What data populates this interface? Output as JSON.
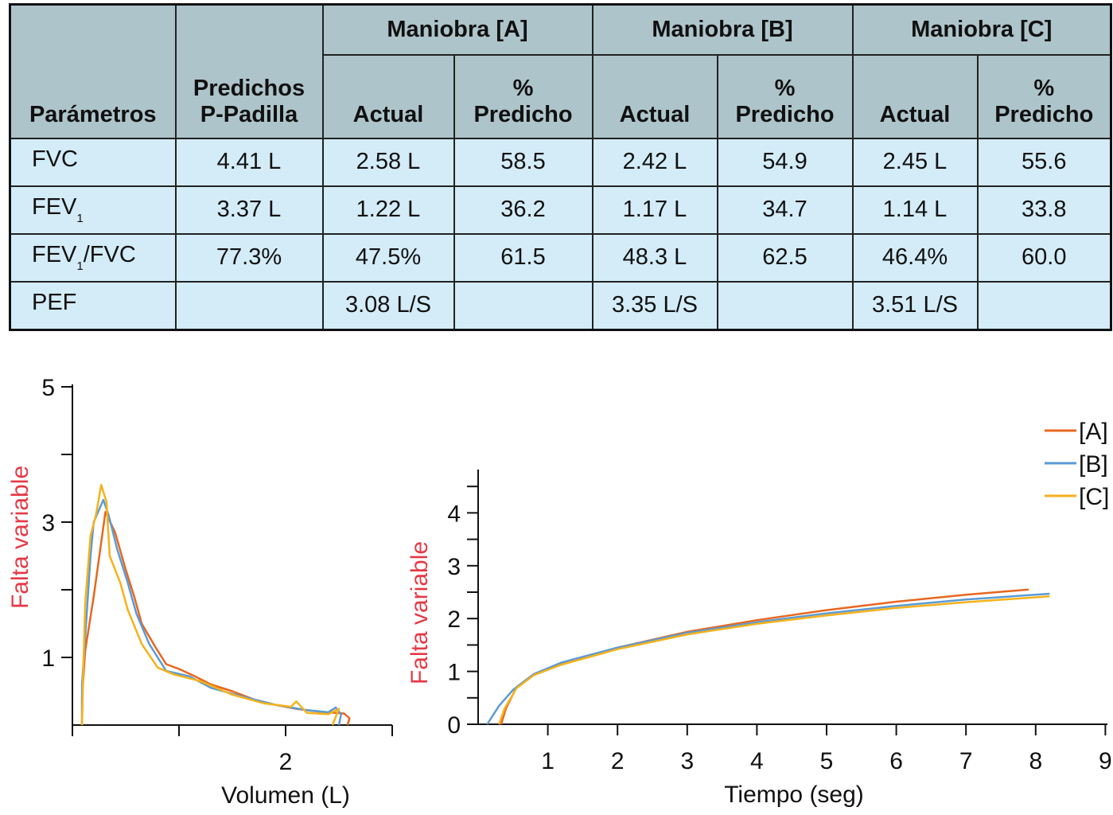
{
  "table": {
    "headers": {
      "parametros": "Parámetros",
      "predichos_line1": "Predichos",
      "predichos_line2": "P-Padilla",
      "maniobras": [
        "Maniobra [A]",
        "Maniobra [B]",
        "Maniobra [C]"
      ],
      "actual": "Actual",
      "pct_line1": "%",
      "pct_line2": "Predicho"
    },
    "rows": [
      {
        "param": "FVC",
        "sub": "",
        "param_suffix": "",
        "pred": "4.41 L",
        "a_act": "2.58 L",
        "a_pct": "58.5",
        "b_act": "2.42 L",
        "b_pct": "54.9",
        "c_act": "2.45 L",
        "c_pct": "55.6"
      },
      {
        "param": "FEV",
        "sub": "1",
        "param_suffix": "",
        "pred": "3.37 L",
        "a_act": "1.22 L",
        "a_pct": "36.2",
        "b_act": "1.17 L",
        "b_pct": "34.7",
        "c_act": "1.14 L",
        "c_pct": "33.8"
      },
      {
        "param": "FEV",
        "sub": "1",
        "param_suffix": "/FVC",
        "pred": "77.3%",
        "a_act": "47.5%",
        "a_pct": "61.5",
        "b_act": "48.3 L",
        "b_pct": "62.5",
        "c_act": "46.4%",
        "c_pct": "60.0"
      },
      {
        "param": "PEF",
        "sub": "",
        "param_suffix": "",
        "pred": "",
        "a_act": "3.08 L/S",
        "a_pct": "",
        "b_act": "3.35 L/S",
        "b_pct": "",
        "c_act": "3.51 L/S",
        "c_pct": ""
      }
    ]
  },
  "colors": {
    "A": "#e8671f",
    "B": "#5b9bd5",
    "C": "#f5b21b",
    "ylabel": "#e53946"
  },
  "chart_data": [
    {
      "type": "line",
      "title": "",
      "xlabel": "Volumen (L)",
      "ylabel": "Falta variable",
      "xlim": [
        0,
        3
      ],
      "ylim": [
        0,
        5
      ],
      "xticks": [
        0,
        1,
        2,
        3
      ],
      "xtick_labels": [
        "",
        "",
        "2",
        ""
      ],
      "yticks": [
        1,
        2,
        3,
        4,
        5
      ],
      "ytick_labels": [
        "1",
        "",
        "3",
        "",
        "5"
      ],
      "series": [
        {
          "name": "[A]",
          "points": [
            [
              0.09,
              0
            ],
            [
              0.09,
              0.4
            ],
            [
              0.12,
              1.1
            ],
            [
              0.2,
              1.9
            ],
            [
              0.31,
              3.15
            ],
            [
              0.4,
              2.85
            ],
            [
              0.5,
              2.3
            ],
            [
              0.58,
              1.9
            ],
            [
              0.65,
              1.5
            ],
            [
              0.78,
              1.15
            ],
            [
              0.88,
              0.9
            ],
            [
              1.0,
              0.83
            ],
            [
              1.15,
              0.72
            ],
            [
              1.3,
              0.6
            ],
            [
              1.5,
              0.5
            ],
            [
              1.7,
              0.38
            ],
            [
              1.9,
              0.3
            ],
            [
              2.1,
              0.24
            ],
            [
              2.3,
              0.2
            ],
            [
              2.55,
              0.17
            ],
            [
              2.6,
              0.1
            ],
            [
              2.58,
              0
            ]
          ]
        },
        {
          "name": "[B]",
          "points": [
            [
              0.09,
              0
            ],
            [
              0.09,
              0.6
            ],
            [
              0.12,
              1.3
            ],
            [
              0.17,
              2.5
            ],
            [
              0.2,
              3.0
            ],
            [
              0.29,
              3.33
            ],
            [
              0.34,
              3.1
            ],
            [
              0.42,
              2.6
            ],
            [
              0.52,
              2.1
            ],
            [
              0.6,
              1.65
            ],
            [
              0.72,
              1.2
            ],
            [
              0.88,
              0.8
            ],
            [
              1.1,
              0.72
            ],
            [
              1.3,
              0.55
            ],
            [
              1.6,
              0.42
            ],
            [
              1.9,
              0.3
            ],
            [
              2.2,
              0.22
            ],
            [
              2.4,
              0.19
            ],
            [
              2.47,
              0.26
            ],
            [
              2.52,
              0.16
            ],
            [
              2.5,
              0
            ]
          ]
        },
        {
          "name": "[C]",
          "points": [
            [
              0.09,
              0
            ],
            [
              0.1,
              0.7
            ],
            [
              0.12,
              1.8
            ],
            [
              0.17,
              2.8
            ],
            [
              0.22,
              3.1
            ],
            [
              0.27,
              3.55
            ],
            [
              0.32,
              3.3
            ],
            [
              0.35,
              2.5
            ],
            [
              0.45,
              2.1
            ],
            [
              0.52,
              1.7
            ],
            [
              0.65,
              1.2
            ],
            [
              0.8,
              0.85
            ],
            [
              0.95,
              0.75
            ],
            [
              1.2,
              0.65
            ],
            [
              1.5,
              0.45
            ],
            [
              1.8,
              0.32
            ],
            [
              2.05,
              0.27
            ],
            [
              2.1,
              0.35
            ],
            [
              2.2,
              0.18
            ],
            [
              2.4,
              0.16
            ],
            [
              2.5,
              0.24
            ],
            [
              2.44,
              0
            ]
          ]
        }
      ]
    },
    {
      "type": "line",
      "title": "",
      "xlabel": "Tiempo (seg)",
      "ylabel": "Falta variable",
      "xlim": [
        0,
        9
      ],
      "ylim": [
        0,
        4.8
      ],
      "xticks": [
        1,
        2,
        3,
        4,
        5,
        6,
        7,
        8,
        9
      ],
      "xtick_labels": [
        "1",
        "2",
        "3",
        "4",
        "5",
        "6",
        "7",
        "8",
        "9"
      ],
      "yticks": [
        0,
        1,
        2,
        3,
        4
      ],
      "ytick_labels": [
        "0",
        "1",
        "2",
        "3",
        "4"
      ],
      "legend": {
        "position": "top-right",
        "entries": [
          "[A]",
          "[B]",
          "[C]"
        ]
      },
      "series": [
        {
          "name": "[A]",
          "points": [
            [
              0.33,
              0
            ],
            [
              0.4,
              0.3
            ],
            [
              0.55,
              0.7
            ],
            [
              0.8,
              0.95
            ],
            [
              1.2,
              1.15
            ],
            [
              2,
              1.45
            ],
            [
              3,
              1.75
            ],
            [
              4,
              1.97
            ],
            [
              5,
              2.16
            ],
            [
              6,
              2.32
            ],
            [
              7,
              2.45
            ],
            [
              7.9,
              2.55
            ]
          ]
        },
        {
          "name": "[B]",
          "points": [
            [
              0.13,
              0
            ],
            [
              0.3,
              0.35
            ],
            [
              0.5,
              0.65
            ],
            [
              0.8,
              0.95
            ],
            [
              1.2,
              1.17
            ],
            [
              2,
              1.45
            ],
            [
              3,
              1.73
            ],
            [
              4,
              1.93
            ],
            [
              5,
              2.1
            ],
            [
              6,
              2.24
            ],
            [
              7,
              2.36
            ],
            [
              8.2,
              2.47
            ]
          ]
        },
        {
          "name": "[C]",
          "points": [
            [
              0.3,
              0
            ],
            [
              0.38,
              0.3
            ],
            [
              0.55,
              0.68
            ],
            [
              0.8,
              0.93
            ],
            [
              1.2,
              1.13
            ],
            [
              2,
              1.42
            ],
            [
              3,
              1.7
            ],
            [
              4,
              1.9
            ],
            [
              5,
              2.06
            ],
            [
              6,
              2.2
            ],
            [
              7,
              2.31
            ],
            [
              8.2,
              2.42
            ]
          ]
        }
      ]
    }
  ]
}
